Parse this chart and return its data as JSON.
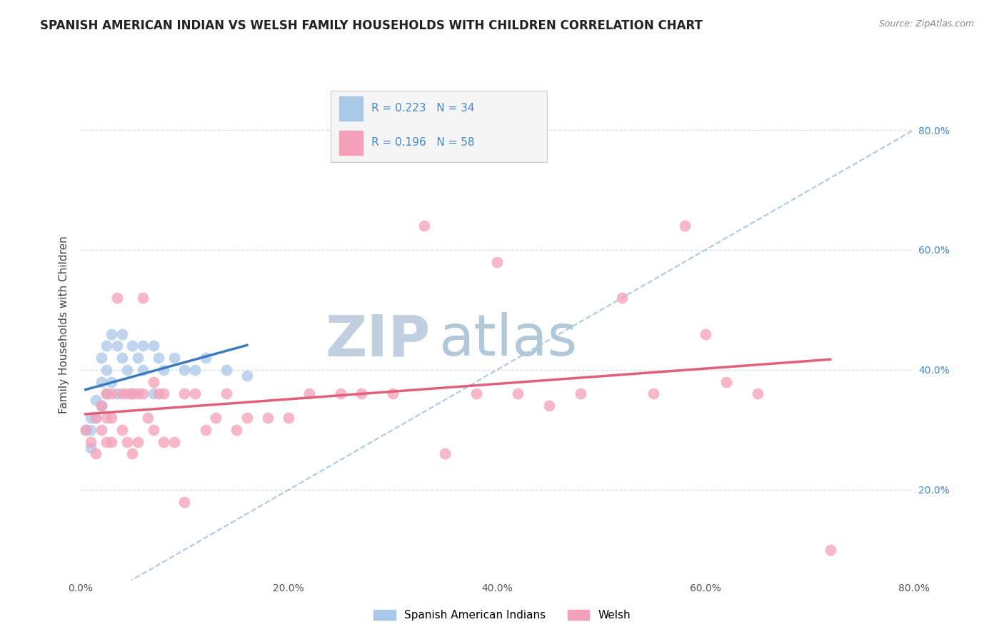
{
  "title": "SPANISH AMERICAN INDIAN VS WELSH FAMILY HOUSEHOLDS WITH CHILDREN CORRELATION CHART",
  "source_text": "Source: ZipAtlas.com",
  "ylabel": "Family Households with Children",
  "legend_label1": "Spanish American Indians",
  "legend_label2": "Welsh",
  "R1": "0.223",
  "N1": "34",
  "R2": "0.196",
  "N2": "58",
  "color_blue": "#a8c8e8",
  "color_pink": "#f4a0b8",
  "line_blue": "#3a7abf",
  "line_pink": "#e0607a",
  "line_dashed_color": "#aac8e8",
  "background_color": "#ffffff",
  "watermark_zip": "ZIP",
  "watermark_atlas": "atlas",
  "watermark_zip_color": "#c0d0e0",
  "watermark_atlas_color": "#b0c8d8",
  "xlim": [
    0.0,
    0.8
  ],
  "ylim": [
    0.05,
    0.9
  ],
  "xticks": [
    0.0,
    0.2,
    0.4,
    0.6,
    0.8
  ],
  "yticks": [
    0.2,
    0.4,
    0.6,
    0.8
  ],
  "xtick_labels": [
    "0.0%",
    "20.0%",
    "40.0%",
    "60.0%",
    "80.0%"
  ],
  "ytick_labels": [
    "20.0%",
    "40.0%",
    "60.0%",
    "80.0%"
  ],
  "tick_color": "#4488cc",
  "grid_color": "#dddddd",
  "title_fontsize": 12,
  "axis_label_fontsize": 11,
  "tick_fontsize": 10,
  "legend_fontsize": 11,
  "watermark_fontsize_zip": 58,
  "watermark_fontsize_atlas": 58,
  "blue_scatter_x": [
    0.005,
    0.01,
    0.01,
    0.01,
    0.015,
    0.015,
    0.02,
    0.02,
    0.02,
    0.025,
    0.025,
    0.025,
    0.03,
    0.03,
    0.035,
    0.035,
    0.04,
    0.04,
    0.045,
    0.05,
    0.05,
    0.055,
    0.06,
    0.06,
    0.07,
    0.07,
    0.075,
    0.08,
    0.09,
    0.1,
    0.11,
    0.12,
    0.14,
    0.16
  ],
  "blue_scatter_y": [
    0.3,
    0.32,
    0.3,
    0.27,
    0.35,
    0.32,
    0.42,
    0.38,
    0.34,
    0.44,
    0.4,
    0.36,
    0.46,
    0.38,
    0.44,
    0.36,
    0.46,
    0.42,
    0.4,
    0.44,
    0.36,
    0.42,
    0.44,
    0.4,
    0.44,
    0.36,
    0.42,
    0.4,
    0.42,
    0.4,
    0.4,
    0.42,
    0.4,
    0.39
  ],
  "pink_scatter_x": [
    0.005,
    0.01,
    0.015,
    0.015,
    0.02,
    0.02,
    0.025,
    0.025,
    0.025,
    0.03,
    0.03,
    0.03,
    0.035,
    0.04,
    0.04,
    0.045,
    0.045,
    0.05,
    0.05,
    0.055,
    0.055,
    0.06,
    0.06,
    0.065,
    0.07,
    0.07,
    0.075,
    0.08,
    0.08,
    0.09,
    0.1,
    0.1,
    0.11,
    0.12,
    0.13,
    0.14,
    0.15,
    0.16,
    0.18,
    0.2,
    0.22,
    0.25,
    0.27,
    0.3,
    0.33,
    0.35,
    0.38,
    0.4,
    0.42,
    0.45,
    0.48,
    0.52,
    0.55,
    0.58,
    0.6,
    0.62,
    0.65,
    0.72
  ],
  "pink_scatter_y": [
    0.3,
    0.28,
    0.32,
    0.26,
    0.34,
    0.3,
    0.36,
    0.32,
    0.28,
    0.36,
    0.32,
    0.28,
    0.52,
    0.36,
    0.3,
    0.36,
    0.28,
    0.36,
    0.26,
    0.36,
    0.28,
    0.52,
    0.36,
    0.32,
    0.38,
    0.3,
    0.36,
    0.36,
    0.28,
    0.28,
    0.36,
    0.18,
    0.36,
    0.3,
    0.32,
    0.36,
    0.3,
    0.32,
    0.32,
    0.32,
    0.36,
    0.36,
    0.36,
    0.36,
    0.64,
    0.26,
    0.36,
    0.58,
    0.36,
    0.34,
    0.36,
    0.52,
    0.36,
    0.64,
    0.46,
    0.38,
    0.36,
    0.1
  ]
}
